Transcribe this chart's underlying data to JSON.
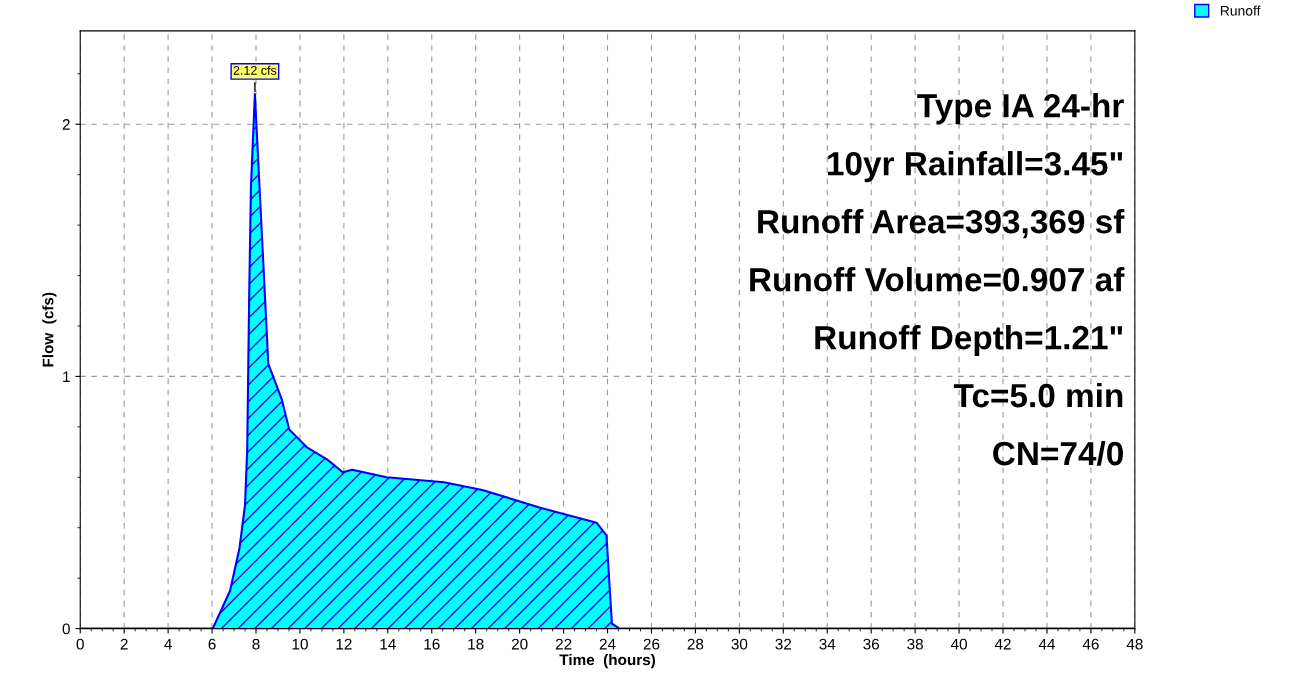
{
  "chart_data": {
    "type": "area",
    "xlabel": "Time  (hours)",
    "ylabel": "Flow  (cfs)",
    "x": [
      0,
      6.03,
      6.82,
      7.25,
      7.5,
      7.6,
      7.69,
      7.77,
      7.95,
      8.56,
      9.17,
      9.51,
      10.3,
      11.25,
      11.95,
      12.38,
      13.95,
      16.56,
      18.3,
      20.9,
      23.5,
      23.95,
      24.2,
      24.55,
      48
    ],
    "series": [
      {
        "name": "Runoff",
        "color": "#00ffff",
        "values": [
          0,
          0,
          0.15,
          0.32,
          0.49,
          0.71,
          1.32,
          1.75,
          2.12,
          1.05,
          0.91,
          0.79,
          0.72,
          0.67,
          0.62,
          0.63,
          0.6,
          0.58,
          0.55,
          0.48,
          0.42,
          0.37,
          0.02,
          0,
          0
        ]
      }
    ],
    "xlim": [
      0,
      48
    ],
    "ylim": [
      0,
      2.37
    ],
    "xticks": [
      0,
      2,
      4,
      6,
      8,
      10,
      12,
      14,
      16,
      18,
      20,
      22,
      24,
      26,
      28,
      30,
      32,
      34,
      36,
      38,
      40,
      42,
      44,
      46,
      48
    ],
    "yticks": [
      0,
      1,
      2
    ],
    "grid": true,
    "legend": "top right",
    "line_style": "solid",
    "marker": "none",
    "annotations": [
      {
        "text": "2.12 cfs",
        "x": 7.95,
        "y": 2.12
      },
      "Type IA 24-hr",
      "10yr Rainfall=3.45\"",
      "Runoff Area=393,369 sf",
      "Runoff Volume=0.907 af",
      "Runoff Depth=1.21\"",
      "Tc=5.0 min",
      "CN=74/0"
    ]
  }
}
